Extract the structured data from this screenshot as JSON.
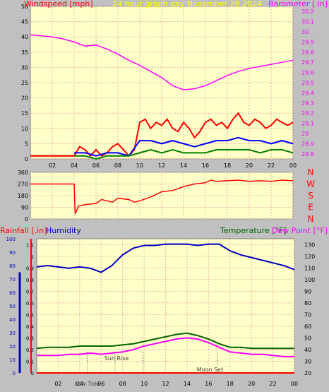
{
  "header": {
    "left_label": "Windspeed [mph]",
    "center_label": "24 hour graph day   November 28 2024",
    "right_label": "Barometer [.in]"
  },
  "colors": {
    "plot_bg": "#ffffc8",
    "frame_bg": "#c0c0c0",
    "grid": "#e8b0b0",
    "windspeed": "#ff0000",
    "gust_blue": "#0000ff",
    "gust_green": "#008000",
    "barometer": "#ff00ff",
    "direction": "#ff0000",
    "humidity": "#0000c0",
    "temperature": "#006400",
    "dew_point": "#ff00ff",
    "rainfall": "#ff0000",
    "axis_left_text": "#000000",
    "axis_red": "#ff0000",
    "axis_magenta": "#ff00ff",
    "axis_blue": "#0000c0"
  },
  "chart_data": [
    {
      "id": "wind_baro",
      "type": "line",
      "x_ticks": [
        "02",
        "04",
        "06",
        "08",
        "10",
        "12",
        "14",
        "16",
        "18",
        "20",
        "22",
        "00"
      ],
      "left_axis": {
        "label": "Windspeed [mph]",
        "ticks": [
          "0",
          "5",
          "10",
          "15",
          "20",
          "25",
          "30",
          "35",
          "40",
          "45",
          "50"
        ],
        "ylim": [
          0,
          50
        ]
      },
      "right_axis": {
        "label": "Barometer [.in]",
        "ticks": [
          "28.8",
          "28.9",
          "29",
          "29.1",
          "29.2",
          "29.3",
          "29.4",
          "29.5",
          "29.6",
          "29.7",
          "29.8",
          "29.9",
          "30",
          "30.1",
          "30.2"
        ],
        "ylim": [
          28.75,
          30.25
        ]
      },
      "series": [
        {
          "name": "Barometer [.in]",
          "axis": "right",
          "x": [
            0,
            1,
            2,
            3,
            4,
            5,
            6,
            7,
            8,
            9,
            10,
            11,
            12,
            13,
            14,
            15,
            16,
            17,
            18,
            19,
            20,
            21,
            22,
            23,
            24
          ],
          "values": [
            29.97,
            29.96,
            29.95,
            29.93,
            29.9,
            29.86,
            29.87,
            29.83,
            29.78,
            29.72,
            29.67,
            29.61,
            29.55,
            29.47,
            29.43,
            29.44,
            29.47,
            29.52,
            29.57,
            29.61,
            29.64,
            29.66,
            29.68,
            29.7,
            29.72
          ]
        },
        {
          "name": "Windspeed [mph]",
          "axis": "left",
          "x": [
            0,
            1,
            2,
            3,
            4,
            4.5,
            5,
            5.5,
            6,
            6.5,
            7,
            7.5,
            8,
            8.5,
            9,
            9.5,
            10,
            10.5,
            11,
            11.5,
            12,
            12.5,
            13,
            13.5,
            14,
            14.5,
            15,
            15.5,
            16,
            16.5,
            17,
            17.5,
            18,
            18.5,
            19,
            19.5,
            20,
            20.5,
            21,
            21.5,
            22,
            22.5,
            23,
            23.5,
            24
          ],
          "values": [
            1,
            1,
            1,
            1,
            1,
            4,
            3,
            1,
            3,
            1,
            2,
            4,
            5,
            3,
            1,
            3,
            12,
            13,
            10,
            12,
            11,
            13,
            10,
            9,
            12,
            10,
            7,
            9,
            12,
            13,
            11,
            12,
            10,
            13,
            15,
            12,
            11,
            13,
            12,
            10,
            11,
            13,
            12,
            11,
            12
          ]
        },
        {
          "name": "Gust blue",
          "axis": "left",
          "x": [
            4,
            5,
            6,
            7,
            8,
            9,
            10,
            11,
            12,
            13,
            14,
            15,
            16,
            17,
            18,
            19,
            20,
            21,
            22,
            23,
            24
          ],
          "values": [
            2,
            2,
            1,
            2,
            2,
            1,
            6,
            6,
            5,
            6,
            5,
            4,
            5,
            6,
            6,
            7,
            6,
            6,
            5,
            6,
            5
          ]
        },
        {
          "name": "Gust green",
          "axis": "left",
          "x": [
            4,
            5,
            6,
            7,
            8,
            9,
            10,
            11,
            12,
            13,
            14,
            15,
            16,
            17,
            18,
            19,
            20,
            21,
            22,
            23,
            24
          ],
          "values": [
            1,
            1,
            0,
            1,
            1,
            1,
            2,
            3,
            2,
            3,
            2,
            2,
            2,
            3,
            3,
            3,
            3,
            2,
            3,
            3,
            2
          ]
        }
      ]
    },
    {
      "id": "direction",
      "type": "line",
      "left_ticks": [
        "360",
        "270",
        "180",
        "90",
        "0"
      ],
      "ylim": [
        0,
        360
      ],
      "compass": [
        "N",
        "W",
        "S",
        "E",
        "N"
      ],
      "series": [
        {
          "name": "Wind direction",
          "x": [
            0,
            2,
            4,
            4.1,
            4.4,
            5,
            6,
            6.5,
            7,
            7.5,
            8,
            9,
            9.5,
            10,
            11,
            12,
            13,
            14,
            15,
            16,
            16.5,
            17,
            18,
            19,
            20,
            21,
            22,
            23,
            24
          ],
          "values": [
            270,
            270,
            270,
            40,
            100,
            110,
            120,
            150,
            140,
            130,
            160,
            150,
            130,
            140,
            170,
            210,
            220,
            250,
            270,
            280,
            300,
            290,
            295,
            300,
            290,
            295,
            290,
            300,
            295
          ]
        }
      ]
    },
    {
      "id": "temp_hum",
      "type": "line",
      "x_ticks": [
        "02",
        "04",
        "06",
        "08",
        "10",
        "12",
        "14",
        "16",
        "18",
        "20",
        "22",
        "00"
      ],
      "x_extra_labels": [
        "Low Tide",
        "Sun Rise",
        "Moon Set"
      ],
      "left_axis_rain": {
        "label": "Rainfall [.in]",
        "ticks": [
          "0",
          "0.1",
          "0.2",
          "0.3",
          "0.4",
          "0.5",
          "0.6",
          "0.7",
          "0.8",
          "0.9",
          "1",
          "1.1"
        ],
        "ylim": [
          0,
          1.15
        ]
      },
      "left_axis_humidity": {
        "label": "Humidity",
        "ticks": [
          "0",
          "10",
          "20",
          "30",
          "40",
          "50",
          "60",
          "70",
          "80",
          "90",
          "100"
        ],
        "ylim": [
          0,
          100
        ]
      },
      "right_axis": {
        "label": "Temperature [°F]",
        "ticks": [
          "20",
          "30",
          "40",
          "50",
          "60",
          "70",
          "80",
          "90",
          "100",
          "110",
          "120",
          "130"
        ],
        "ylim": [
          20,
          135
        ]
      },
      "legend_right_2": "Dew Point [°F]",
      "series": [
        {
          "name": "Humidity",
          "axis": "humidity",
          "x": [
            0,
            1,
            2,
            3,
            4,
            5,
            6,
            7,
            8,
            9,
            10,
            11,
            12,
            13,
            14,
            15,
            16,
            17,
            18,
            19,
            20,
            21,
            22,
            23,
            24
          ],
          "values": [
            79,
            80,
            79,
            78,
            79,
            78,
            75,
            80,
            88,
            93,
            95,
            95,
            96,
            96,
            96,
            95,
            96,
            96,
            91,
            88,
            86,
            84,
            82,
            80,
            77
          ]
        },
        {
          "name": "Temperature [°F]",
          "axis": "right",
          "x": [
            0,
            1,
            2,
            3,
            4,
            5,
            6,
            7,
            8,
            9,
            10,
            11,
            12,
            13,
            14,
            15,
            16,
            17,
            18,
            19,
            20,
            21,
            22,
            23,
            24
          ],
          "values": [
            41,
            42,
            42,
            42,
            43,
            43,
            43,
            43,
            44,
            45,
            47,
            49,
            51,
            53,
            54,
            52,
            49,
            45,
            42,
            42,
            41,
            41,
            41,
            41,
            41
          ]
        },
        {
          "name": "Dew Point [°F]",
          "axis": "right",
          "x": [
            0,
            1,
            2,
            3,
            4,
            5,
            6,
            7,
            8,
            9,
            10,
            11,
            12,
            13,
            14,
            15,
            16,
            17,
            18,
            19,
            20,
            21,
            22,
            23,
            24
          ],
          "values": [
            35,
            35,
            35,
            36,
            36,
            37,
            36,
            37,
            38,
            40,
            43,
            45,
            47,
            49,
            50,
            49,
            46,
            42,
            38,
            37,
            36,
            36,
            35,
            34,
            34
          ]
        },
        {
          "name": "Rainfall [.in]",
          "axis": "rain",
          "x": [
            0,
            24
          ],
          "values": [
            0,
            0
          ]
        }
      ],
      "markers": [
        {
          "label": "Low Tide",
          "x": 4.7
        },
        {
          "label": "Sun Rise",
          "x": 7.3
        },
        {
          "label": "",
          "x": 9.9
        },
        {
          "label": "Moon Set",
          "x": 16.8
        }
      ]
    }
  ]
}
